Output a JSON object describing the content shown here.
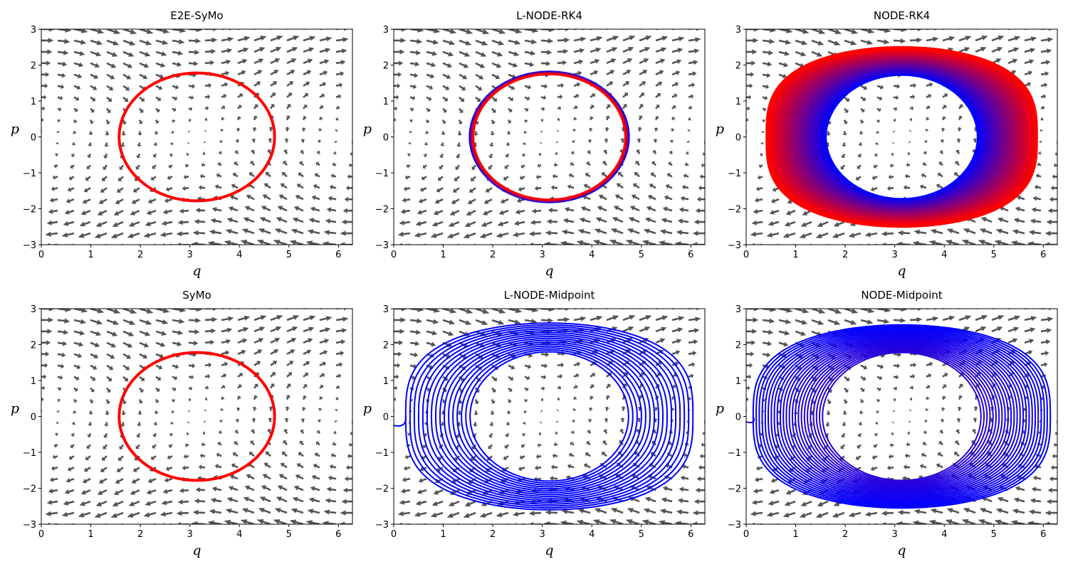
{
  "chart_data": [
    {
      "type": "line",
      "title": "E2E-SyMo",
      "xlabel": "q",
      "ylabel": "p",
      "xlim": [
        0,
        6.283
      ],
      "ylim": [
        -3,
        3
      ],
      "xticks": [
        "0",
        "1",
        "2",
        "3",
        "4",
        "5",
        "6"
      ],
      "yticks": [
        "−3",
        "−2",
        "−1",
        "0",
        "1",
        "2",
        "3"
      ],
      "background": "quiver vector field (pendulum dynamics), color #555555",
      "trajectory": {
        "kind": "closed-orbit",
        "center": [
          3.1416,
          0
        ],
        "q_range": [
          1.57,
          4.71
        ],
        "p_range": [
          -1.78,
          1.78
        ],
        "rings": 1,
        "color_start": "#ff0000",
        "color_end": "#ff0000"
      }
    },
    {
      "type": "line",
      "title": "L-NODE-RK4",
      "xlabel": "q",
      "ylabel": "p",
      "xlim": [
        0,
        6.283
      ],
      "ylim": [
        -3,
        3
      ],
      "xticks": [
        "0",
        "1",
        "2",
        "3",
        "4",
        "5",
        "6"
      ],
      "yticks": [
        "−3",
        "−2",
        "−1",
        "0",
        "1",
        "2",
        "3"
      ],
      "background": "quiver vector field (pendulum dynamics), color #555555",
      "trajectory": {
        "kind": "closed-orbit",
        "center": [
          3.1416,
          0
        ],
        "q_range": [
          1.57,
          4.71
        ],
        "p_range": [
          -1.78,
          1.78
        ],
        "rings": 6,
        "spread": 0.07,
        "color_start": "#0000ff",
        "color_end": "#ff0000"
      }
    },
    {
      "type": "line",
      "title": "NODE-RK4",
      "xlabel": "q",
      "ylabel": "p",
      "xlim": [
        0,
        6.283
      ],
      "ylim": [
        -3,
        3
      ],
      "xticks": [
        "0",
        "1",
        "2",
        "3",
        "4",
        "5",
        "6"
      ],
      "yticks": [
        "−3",
        "−2",
        "−1",
        "0",
        "1",
        "2",
        "3"
      ],
      "background": "quiver vector field (pendulum dynamics), color #555555",
      "trajectory": {
        "kind": "spiral-outward",
        "center": [
          3.1416,
          0
        ],
        "inner_q_range": [
          1.6,
          4.7
        ],
        "inner_p_range": [
          -1.75,
          1.75
        ],
        "outer_q_range": [
          0.42,
          5.85
        ],
        "outer_p_range": [
          -2.48,
          2.48
        ],
        "rings": 40,
        "color_start": "#0000ff",
        "color_end": "#ff0000"
      }
    },
    {
      "type": "line",
      "title": "SyMo",
      "xlabel": "q",
      "ylabel": "p",
      "xlim": [
        0,
        6.283
      ],
      "ylim": [
        -3,
        3
      ],
      "xticks": [
        "0",
        "1",
        "2",
        "3",
        "4",
        "5",
        "6"
      ],
      "yticks": [
        "−3",
        "−2",
        "−1",
        "0",
        "1",
        "2",
        "3"
      ],
      "background": "quiver vector field (pendulum dynamics), color #555555",
      "trajectory": {
        "kind": "closed-orbit",
        "center": [
          3.1416,
          0
        ],
        "q_range": [
          1.57,
          4.71
        ],
        "p_range": [
          -1.78,
          1.78
        ],
        "rings": 1,
        "color_start": "#ff0000",
        "color_end": "#ff0000"
      }
    },
    {
      "type": "line",
      "title": "L-NODE-Midpoint",
      "xlabel": "q",
      "ylabel": "p",
      "xlim": [
        0,
        6.283
      ],
      "ylim": [
        -3,
        3
      ],
      "xticks": [
        "0",
        "1",
        "2",
        "3",
        "4",
        "5",
        "6"
      ],
      "yticks": [
        "−3",
        "−2",
        "−1",
        "0",
        "1",
        "2",
        "3"
      ],
      "background": "quiver vector field (pendulum dynamics), color #555555",
      "trajectory": {
        "kind": "spiral-outward",
        "center": [
          3.1416,
          0
        ],
        "inner_q_range": [
          1.55,
          4.75
        ],
        "inner_p_range": [
          -1.8,
          1.8
        ],
        "outer_q_range": [
          0.3,
          6.1
        ],
        "outer_p_range": [
          -2.6,
          2.6
        ],
        "rings": 16,
        "tail_start": [
          0.0,
          -0.25
        ],
        "color_start": "#0000ff",
        "color_end": "#0000ff"
      }
    },
    {
      "type": "line",
      "title": "NODE-Midpoint",
      "xlabel": "q",
      "ylabel": "p",
      "xlim": [
        0,
        6.283
      ],
      "ylim": [
        -3,
        3
      ],
      "xticks": [
        "0",
        "1",
        "2",
        "3",
        "4",
        "5",
        "6"
      ],
      "yticks": [
        "−3",
        "−2",
        "−1",
        "0",
        "1",
        "2",
        "3"
      ],
      "background": "quiver vector field (pendulum dynamics), color #555555",
      "trajectory": {
        "kind": "spiral-outward",
        "center": [
          3.1416,
          0
        ],
        "inner_q_range": [
          1.55,
          4.75
        ],
        "inner_p_range": [
          -1.78,
          1.78
        ],
        "outer_q_range": [
          0.25,
          6.25
        ],
        "outer_p_range": [
          -2.55,
          2.55
        ],
        "rings": 24,
        "tail_start": [
          0.0,
          -0.15
        ],
        "color_start": "#2a00d8",
        "color_end": "#0000ff"
      }
    }
  ]
}
